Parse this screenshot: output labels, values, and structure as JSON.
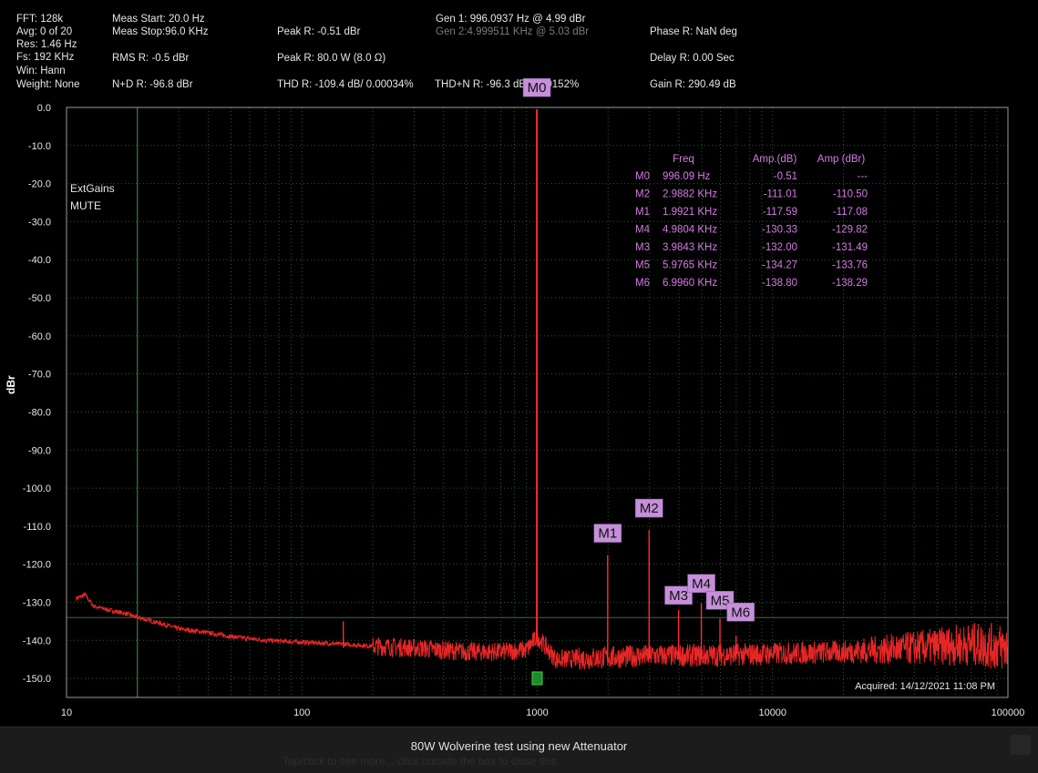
{
  "header": {
    "fft": "FFT: 128k",
    "avg": "Avg: 0 of 20",
    "res": "Res: 1.46 Hz",
    "fs": "Fs: 192 KHz",
    "win": "Win: Hann",
    "weight": "Weight: None",
    "meas_start": "Meas Start: 20.0 Hz",
    "meas_stop": "Meas Stop:96.0 KHz",
    "rms": "RMS R: -0.5 dBr",
    "n_d": "N+D R: -96.8 dBr",
    "peak1": "Peak R: -0.51 dBr",
    "peak2": "Peak R: 80.0 W (8.0 Ω)",
    "thd": "THD R: -109.4 dB/ 0.00034%",
    "gen1": "Gen 1: 996.0937 Hz @ 4.99  dBr",
    "gen2": "Gen 2:4.999511 KHz @ 5.03  dBr",
    "thdn": "THD+N R: -96.3 dB/ 0.00152%",
    "phase": "Phase R: NaN deg",
    "delay": "Delay R: 0.00 Sec",
    "gain": "Gain R: 290.49 dB"
  },
  "colors": {
    "trace": "#ff2a2a",
    "marker_bg": "#c58fd9",
    "table_text": "#d37be0",
    "grid": "#2d5a2d",
    "frame": "#9a9a9a"
  },
  "chart_data": {
    "type": "line",
    "x_scale": "log",
    "xlim": [
      10,
      100000
    ],
    "ylim": [
      -155,
      0
    ],
    "ylabel": "dBr",
    "xlabel": "",
    "x_ticks": [
      "10",
      "100",
      "1000",
      "10000",
      "100000"
    ],
    "y_ticks": [
      "0.0",
      "-10.0",
      "-20.0",
      "-30.0",
      "-40.0",
      "-50.0",
      "-60.0",
      "-70.0",
      "-80.0",
      "-90.0",
      "-100.0",
      "-110.0",
      "-120.0",
      "-130.0",
      "-140.0",
      "-150.0"
    ],
    "grid": true,
    "annotations": [
      "ExtGains",
      "MUTE"
    ],
    "acquired": "Acquired: 14/12/2021  11:08 PM",
    "meas_start_line_hz": 20,
    "threshold_line_db": -134,
    "noise_floor": {
      "x": [
        11,
        12,
        13,
        15,
        18,
        20,
        25,
        30,
        40,
        50,
        70,
        100,
        150,
        200,
        300,
        500,
        700,
        900,
        1000,
        1200,
        2000,
        3000,
        5000,
        10000,
        20000,
        40000,
        70000,
        100000
      ],
      "y": [
        -129,
        -128,
        -131,
        -132,
        -133,
        -134,
        -135.5,
        -137,
        -138,
        -139,
        -140,
        -140.5,
        -141,
        -141.5,
        -142,
        -143,
        -143,
        -142.5,
        -139,
        -145,
        -144.5,
        -144,
        -144,
        -143.5,
        -143,
        -142,
        -141,
        -142
      ]
    },
    "spikes": [
      {
        "x": 150,
        "y": -135
      },
      {
        "x": 996.09,
        "y": -0.51
      },
      {
        "x": 1992.1,
        "y": -117.59
      },
      {
        "x": 2988.2,
        "y": -111.01
      },
      {
        "x": 3984.3,
        "y": -132.0
      },
      {
        "x": 4980.4,
        "y": -130.33
      },
      {
        "x": 5976.5,
        "y": -134.27
      },
      {
        "x": 6996.0,
        "y": -138.8
      }
    ],
    "markers": [
      {
        "label": "M0",
        "x": 996.09
      },
      {
        "label": "M1",
        "x": 1992.1
      },
      {
        "label": "M2",
        "x": 2988.2
      },
      {
        "label": "M3",
        "x": 3984.3
      },
      {
        "label": "M4",
        "x": 4980.4
      },
      {
        "label": "M5",
        "x": 5976.5
      },
      {
        "label": "M6",
        "x": 6996.0
      }
    ],
    "table": {
      "headers": [
        "Freq",
        "Amp.(dB)",
        "Amp (dBr)"
      ],
      "rows": [
        [
          "M0",
          "996.09 Hz",
          "-0.51",
          "---"
        ],
        [
          "M2",
          "2.9882 KHz",
          "-111.01",
          "-110.50"
        ],
        [
          "M1",
          "1.9921 KHz",
          "-117.59",
          "-117.08"
        ],
        [
          "M4",
          "4.9804 KHz",
          "-130.33",
          "-129.82"
        ],
        [
          "M3",
          "3.9843 KHz",
          "-132.00",
          "-131.49"
        ],
        [
          "M5",
          "5.9765 KHz",
          "-134.27",
          "-133.76"
        ],
        [
          "M6",
          "6.9960 KHz",
          "-138.80",
          "-138.29"
        ]
      ]
    }
  },
  "caption": "80W Wolverine test using new Attenuator",
  "caption_ghost": "Tap/click to see more... click outside the box to close this"
}
